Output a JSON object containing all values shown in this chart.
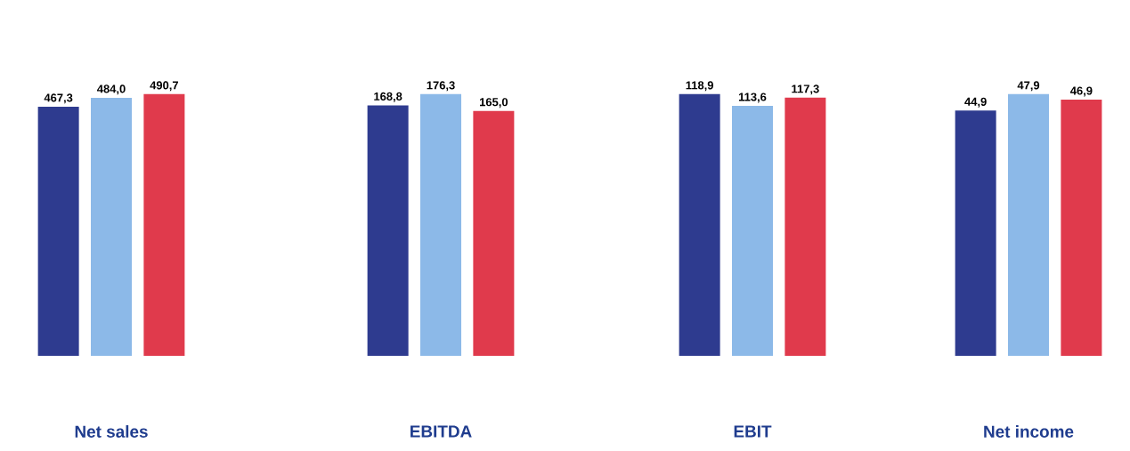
{
  "chart_data": [
    {
      "type": "bar",
      "title": "Net sales",
      "categories": [
        null,
        null,
        null
      ],
      "values": [
        467.3,
        484.0,
        490.7
      ],
      "value_labels": [
        "467,3",
        "484,0",
        "490,7"
      ],
      "colors": [
        "#2e3b8f",
        "#8cb9e8",
        "#e03a4c"
      ]
    },
    {
      "type": "bar",
      "title": "EBITDA",
      "categories": [
        null,
        null,
        null
      ],
      "values": [
        168.8,
        176.3,
        165.0
      ],
      "value_labels": [
        "168,8",
        "176,3",
        "165,0"
      ],
      "colors": [
        "#2e3b8f",
        "#8cb9e8",
        "#e03a4c"
      ]
    },
    {
      "type": "bar",
      "title": "EBIT",
      "categories": [
        null,
        null,
        null
      ],
      "values": [
        118.9,
        113.6,
        117.3
      ],
      "value_labels": [
        "118,9",
        "113,6",
        "117,3"
      ],
      "colors": [
        "#2e3b8f",
        "#8cb9e8",
        "#e03a4c"
      ]
    },
    {
      "type": "bar",
      "title": "Net income",
      "categories": [
        null,
        null,
        null
      ],
      "values": [
        44.9,
        47.9,
        46.9
      ],
      "value_labels": [
        "44,9",
        "47,9",
        "46,9"
      ],
      "colors": [
        "#2e3b8f",
        "#8cb9e8",
        "#e03a4c"
      ]
    }
  ]
}
